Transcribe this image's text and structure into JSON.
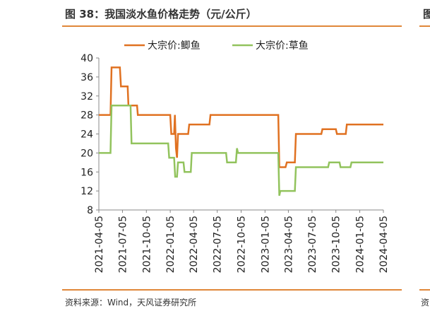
{
  "figure": {
    "title": "图 38：我国淡水鱼价格走势（元/公斤）",
    "source": "资料来源：Wind，天风证券研究所",
    "adjacent_title_fragment": "图",
    "adjacent_source_fragment": "资"
  },
  "colors": {
    "accent": "#e0873a",
    "series1": "#e07121",
    "series2": "#92c35d"
  },
  "chart_data": {
    "type": "line",
    "title": "图 38：我国淡水鱼价格走势（元/公斤）",
    "xlabel": "",
    "ylabel": "",
    "ylim": [
      8,
      40
    ],
    "yticks": [
      8,
      12,
      16,
      20,
      24,
      28,
      32,
      36,
      40
    ],
    "xlim": [
      "2021-04-05",
      "2024-04-05"
    ],
    "xticks": [
      "2021-04-05",
      "2021-07-05",
      "2021-10-05",
      "2022-01-05",
      "2022-04-05",
      "2022-07-05",
      "2022-10-05",
      "2023-01-05",
      "2023-04-05",
      "2023-07-05",
      "2023-10-05",
      "2024-01-05",
      "2024-04-05"
    ],
    "legend_position": "top-center",
    "series": [
      {
        "name": "大宗价:鲫鱼",
        "color": "#e07121",
        "points": [
          [
            "2021-04-05",
            28
          ],
          [
            "2021-05-20",
            28
          ],
          [
            "2021-05-24",
            38
          ],
          [
            "2021-06-25",
            38
          ],
          [
            "2021-06-29",
            34
          ],
          [
            "2021-07-25",
            34
          ],
          [
            "2021-07-28",
            30
          ],
          [
            "2021-08-30",
            30
          ],
          [
            "2021-09-02",
            28
          ],
          [
            "2022-01-05",
            28
          ],
          [
            "2022-01-09",
            24
          ],
          [
            "2022-01-20",
            24
          ],
          [
            "2022-01-23",
            28
          ],
          [
            "2022-01-27",
            21
          ],
          [
            "2022-01-31",
            19
          ],
          [
            "2022-02-04",
            24
          ],
          [
            "2022-03-15",
            24
          ],
          [
            "2022-03-19",
            26
          ],
          [
            "2022-06-05",
            26
          ],
          [
            "2022-06-09",
            28
          ],
          [
            "2023-02-25",
            28
          ],
          [
            "2023-03-01",
            17
          ],
          [
            "2023-03-25",
            17
          ],
          [
            "2023-03-30",
            18
          ],
          [
            "2023-04-30",
            18
          ],
          [
            "2023-05-04",
            24
          ],
          [
            "2023-08-10",
            24
          ],
          [
            "2023-08-14",
            25
          ],
          [
            "2023-10-05",
            25
          ],
          [
            "2023-10-09",
            24
          ],
          [
            "2023-11-12",
            24
          ],
          [
            "2023-11-16",
            26
          ],
          [
            "2024-04-05",
            26
          ]
        ]
      },
      {
        "name": "大宗价:草鱼",
        "color": "#92c35d",
        "points": [
          [
            "2021-04-05",
            20
          ],
          [
            "2021-05-20",
            20
          ],
          [
            "2021-05-24",
            30
          ],
          [
            "2021-08-05",
            30
          ],
          [
            "2021-08-09",
            22
          ],
          [
            "2021-12-28",
            22
          ],
          [
            "2022-01-01",
            19
          ],
          [
            "2022-01-20",
            19
          ],
          [
            "2022-01-24",
            15
          ],
          [
            "2022-01-31",
            15
          ],
          [
            "2022-02-04",
            18
          ],
          [
            "2022-02-25",
            18
          ],
          [
            "2022-03-01",
            16
          ],
          [
            "2022-03-25",
            16
          ],
          [
            "2022-03-29",
            20
          ],
          [
            "2022-08-08",
            20
          ],
          [
            "2022-08-12",
            18
          ],
          [
            "2022-09-15",
            18
          ],
          [
            "2022-09-19",
            21
          ],
          [
            "2022-09-23",
            20
          ],
          [
            "2023-02-25",
            20
          ],
          [
            "2023-03-01",
            11
          ],
          [
            "2023-03-05",
            12
          ],
          [
            "2023-04-30",
            12
          ],
          [
            "2023-05-04",
            17
          ],
          [
            "2023-09-05",
            17
          ],
          [
            "2023-09-09",
            18
          ],
          [
            "2023-10-19",
            18
          ],
          [
            "2023-10-23",
            17
          ],
          [
            "2023-11-30",
            17
          ],
          [
            "2023-12-04",
            18
          ],
          [
            "2024-04-05",
            18
          ]
        ]
      }
    ]
  }
}
